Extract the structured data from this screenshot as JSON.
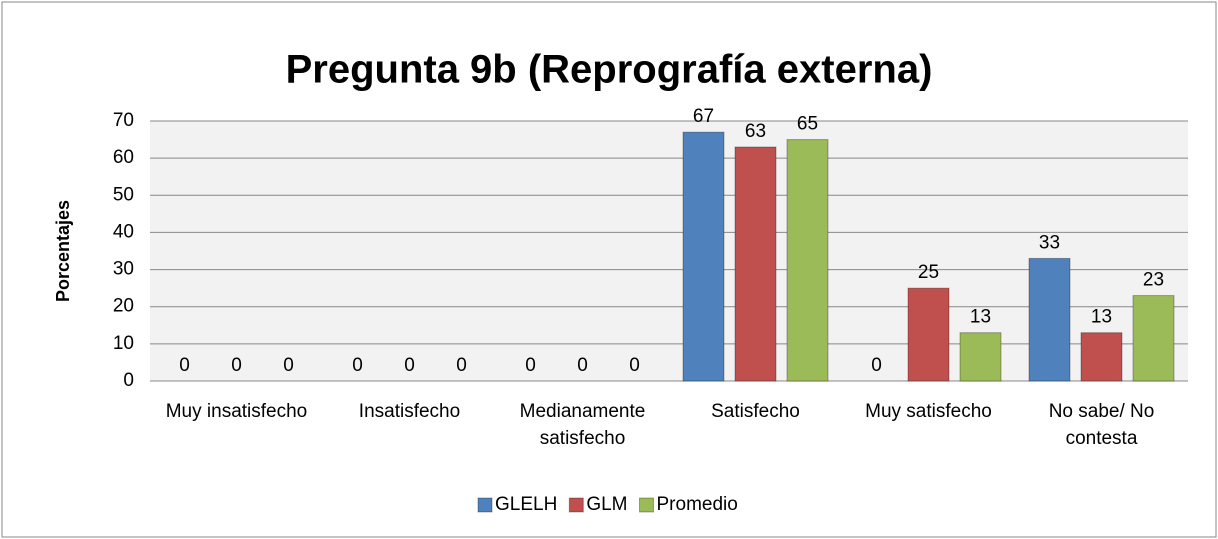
{
  "chart_data": {
    "type": "bar",
    "title": "Pregunta 9b (Reprografía externa)",
    "y_label": "Porcentajes",
    "categories": [
      "Muy insatisfecho",
      "Insatisfecho",
      "Medianamente satisfecho",
      "Satisfecho",
      "Muy satisfecho",
      "No sabe/ No contesta"
    ],
    "series": [
      {
        "name": "GLELH",
        "color": "#4f81bd",
        "values": [
          0,
          0,
          0,
          67,
          0,
          33
        ]
      },
      {
        "name": "GLM",
        "color": "#c0504d",
        "values": [
          0,
          0,
          0,
          63,
          25,
          13
        ]
      },
      {
        "name": "Promedio",
        "color": "#9bbb59",
        "values": [
          0,
          0,
          0,
          65,
          13,
          23
        ]
      }
    ],
    "ylim": [
      0,
      70
    ],
    "yticks": [
      0,
      10,
      20,
      30,
      40,
      50,
      60,
      70
    ],
    "grid": true,
    "legend": "bottom"
  }
}
